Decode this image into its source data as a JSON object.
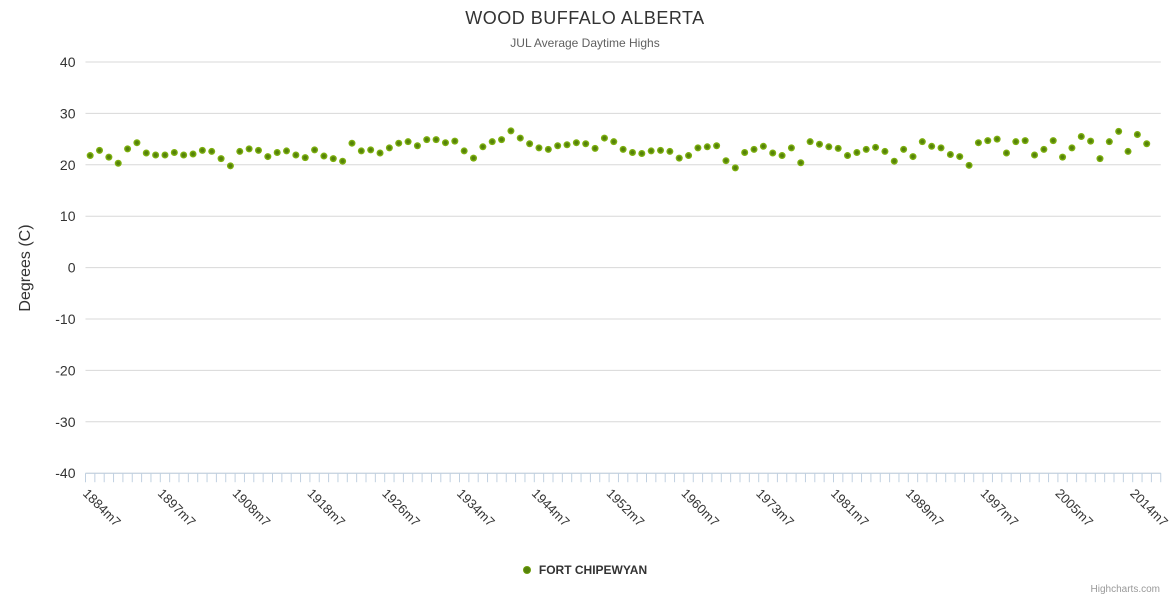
{
  "title": "WOOD BUFFALO ALBERTA",
  "subtitle": "JUL Average Daytime Highs",
  "credits": "Highcharts.com",
  "colors": {
    "series_green": "#7db00e",
    "series_green_dark": "#55820a",
    "grid_line": "#d8d8d8",
    "axis_line": "#c0d0e0",
    "tick_mark": "#c0d0e0",
    "title_text": "#333333",
    "subtitle_text": "#606060",
    "axis_label_text": "#333333",
    "credits_text": "#999999"
  },
  "legend": {
    "items": [
      {
        "label": "FORT CHIPEWYAN",
        "color": "#7db00e"
      }
    ]
  },
  "chart_data": {
    "type": "scatter",
    "title": "WOOD BUFFALO ALBERTA",
    "subtitle": "JUL Average Daytime Highs",
    "xlabel": "",
    "ylabel": "Degrees (C)",
    "ylim": [
      -40,
      40
    ],
    "yticks": [
      40,
      30,
      20,
      10,
      0,
      -10,
      -20,
      -30,
      -40
    ],
    "grid": true,
    "legend_position": "bottom-center",
    "x_axis": {
      "labels": [
        "1884m7",
        "1897m7",
        "1908m7",
        "1918m7",
        "1926m7",
        "1934m7",
        "1944m7",
        "1952m7",
        "1960m7",
        "1973m7",
        "1981m7",
        "1989m7",
        "1997m7",
        "2005m7",
        "2014m7"
      ],
      "label_step": 8,
      "label_rotation": 45
    },
    "series": [
      {
        "name": "FORT CHIPEWYAN",
        "marker": "circle",
        "color": "#7db00e",
        "values": [
          21.8,
          22.8,
          21.5,
          20.3,
          23.1,
          24.3,
          22.3,
          21.9,
          21.9,
          22.4,
          21.9,
          22.1,
          22.8,
          22.6,
          21.2,
          19.8,
          22.6,
          23.1,
          22.8,
          21.6,
          22.4,
          22.7,
          21.9,
          21.4,
          22.9,
          21.7,
          21.2,
          20.7,
          24.2,
          22.7,
          22.9,
          22.3,
          23.3,
          24.2,
          24.5,
          23.7,
          24.9,
          24.9,
          24.3,
          24.6,
          22.7,
          21.3,
          23.5,
          24.5,
          24.9,
          26.6,
          25.2,
          24.1,
          23.3,
          23.0,
          23.7,
          23.9,
          24.3,
          24.1,
          23.2,
          25.2,
          24.5,
          23.0,
          22.4,
          22.2,
          22.7,
          22.8,
          22.6,
          21.3,
          21.8,
          23.3,
          23.5,
          23.7,
          20.8,
          19.4,
          22.4,
          23.0,
          23.6,
          22.3,
          21.8,
          23.3,
          20.4,
          24.5,
          24.0,
          23.5,
          23.2,
          21.8,
          22.4,
          23.0,
          23.4,
          22.6,
          20.7,
          23.0,
          21.6,
          24.5,
          23.6,
          23.3,
          22.0,
          21.6,
          19.9,
          24.3,
          24.7,
          25.0,
          22.3,
          24.5,
          24.7,
          21.9,
          23.0,
          24.7,
          21.5,
          23.3,
          25.5,
          24.6,
          21.2,
          24.5,
          26.5,
          22.6,
          25.9,
          24.1
        ]
      }
    ]
  }
}
